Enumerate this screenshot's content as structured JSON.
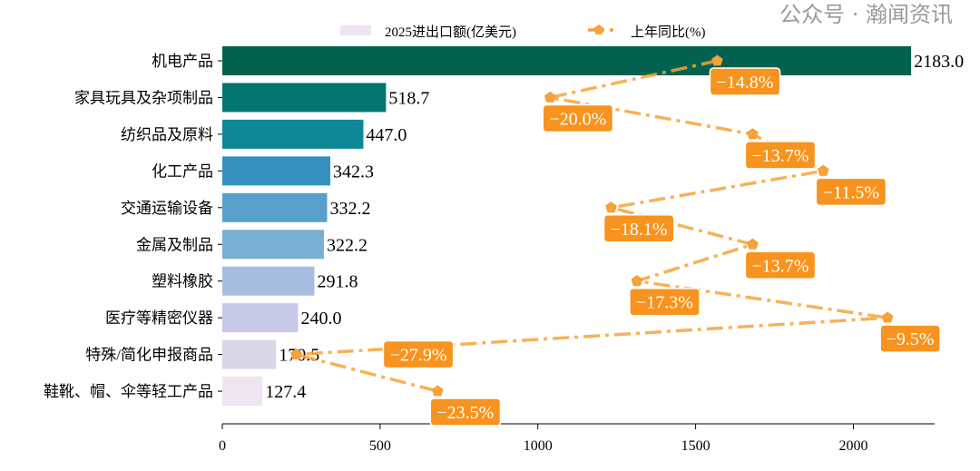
{
  "chart_data": {
    "type": "bar",
    "orientation": "horizontal",
    "categories": [
      "机电产品",
      "家具玩具及杂项制品",
      "纺织品及原料",
      "化工产品",
      "交通运输设备",
      "金属及制品",
      "塑料橡胶",
      "医疗等精密仪器",
      "特殊/简化申报商品",
      "鞋靴、帽、伞等轻工产品"
    ],
    "series": [
      {
        "name": "2025进出口额(亿美元)",
        "type": "bar",
        "values": [
          2183.0,
          518.7,
          447.0,
          342.3,
          332.2,
          322.2,
          291.8,
          240.0,
          170.5,
          127.4
        ],
        "colors": [
          "#03624f",
          "#027570",
          "#0e8796",
          "#3590c0",
          "#56a0cc",
          "#7aafd4",
          "#a6bde0",
          "#c6cae6",
          "#d9d6ea",
          "#efe4f2"
        ]
      },
      {
        "name": "上年同比(%)",
        "type": "line",
        "values": [
          -14.8,
          -20.0,
          -13.7,
          -11.5,
          -18.1,
          -13.7,
          -17.3,
          -9.5,
          -27.9,
          -23.5
        ],
        "color": "#f7a33a",
        "label_color": "#f7931e",
        "marker": "pentagon",
        "linestyle": "dashdot"
      }
    ],
    "xticks": [
      0,
      500,
      1000,
      1500,
      2000
    ],
    "xlim": [
      0,
      2200
    ],
    "secondary_xlim": [
      -30.2,
      -8.6
    ],
    "legend": "top-center"
  },
  "watermark": "公众号 · 瀚闻资讯"
}
